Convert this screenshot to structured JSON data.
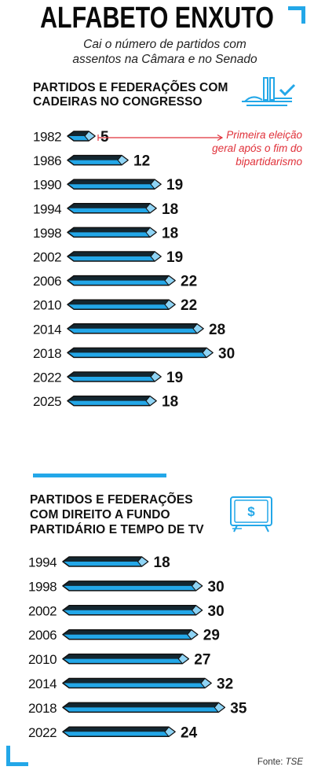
{
  "title": "ALFABETO ENXUTO",
  "subtitle_line1": "Cai o número de partidos com",
  "subtitle_line2": "assentos na Câmara e no Senado",
  "source_label": "Fonte:",
  "source_value": "TSE",
  "colors": {
    "accent": "#23a7e8",
    "bar_fill": "#23a7e8",
    "bar_outline": "#111111",
    "annotation": "#e0313a",
    "icon": "#23a7e8"
  },
  "icons": [
    "congress-building-icon",
    "check-icon",
    "tv-money-icon"
  ],
  "chart_data": [
    {
      "type": "bar",
      "orientation": "horizontal",
      "title_line1": "PARTIDOS E FEDERAÇÕES COM",
      "title_line2": "CADEIRAS NO CONGRESSO",
      "categories": [
        "1982",
        "1986",
        "1990",
        "1994",
        "1998",
        "2002",
        "2006",
        "2010",
        "2014",
        "2018",
        "2022",
        "2025"
      ],
      "values": [
        5,
        12,
        19,
        18,
        18,
        19,
        22,
        22,
        28,
        30,
        19,
        18
      ],
      "annotation": {
        "target": "1982",
        "lines": [
          "Primeira eleição",
          "geral após o fim do",
          "bipartidarismo"
        ]
      }
    },
    {
      "type": "bar",
      "orientation": "horizontal",
      "title_line1": "PARTIDOS E FEDERAÇÕES",
      "title_line2": "COM DIREITO A FUNDO",
      "title_line3": "PARTIDÁRIO E TEMPO DE TV",
      "categories": [
        "1994",
        "1998",
        "2002",
        "2006",
        "2010",
        "2014",
        "2018",
        "2022"
      ],
      "values": [
        18,
        30,
        30,
        29,
        27,
        32,
        35,
        24
      ]
    }
  ]
}
